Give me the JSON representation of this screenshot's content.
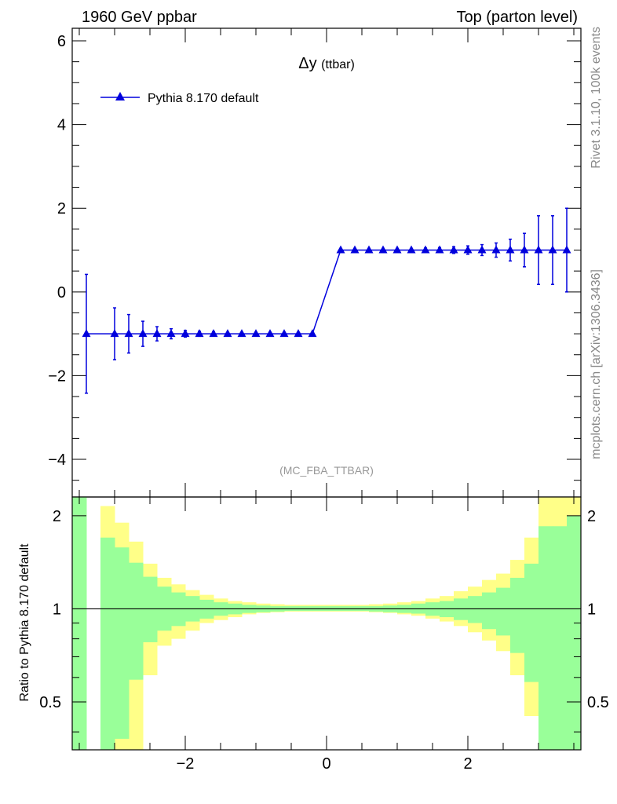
{
  "header": {
    "left": "1960 GeV ppbar",
    "right": "Top (parton level)"
  },
  "side_labels": {
    "version": "Rivet 3.1.10,  100k events",
    "source": "mcplots.cern.ch [arXiv:1306.3436]"
  },
  "chart_data": [
    {
      "type": "line",
      "title": "Δy",
      "title_sub": "(ttbar)",
      "annotation": "(MC_FBA_TTBAR)",
      "xlim": [
        -3.6,
        3.6
      ],
      "ylim": [
        -4.9,
        6.3
      ],
      "xticks": [
        -2,
        0,
        2
      ],
      "xtick_labels": [
        "−2",
        "0",
        "2"
      ],
      "yticks": [
        -4,
        -2,
        0,
        2,
        4,
        6
      ],
      "ytick_labels": [
        "−4",
        "−2",
        "0",
        "2",
        "4",
        "6"
      ],
      "legend": "top-left",
      "series": [
        {
          "name": "Pythia 8.170 default",
          "color": "#0000dd",
          "marker": "triangle",
          "x": [
            -3.4,
            -3.0,
            -2.8,
            -2.6,
            -2.4,
            -2.2,
            -2.0,
            -1.8,
            -1.6,
            -1.4,
            -1.2,
            -1.0,
            -0.8,
            -0.6,
            -0.4,
            -0.2,
            0.2,
            0.4,
            0.6,
            0.8,
            1.0,
            1.2,
            1.4,
            1.6,
            1.8,
            2.0,
            2.2,
            2.4,
            2.6,
            2.8,
            3.0,
            3.2,
            3.4
          ],
          "y": [
            -1,
            -1,
            -1,
            -1,
            -1,
            -1,
            -1,
            -1,
            -1,
            -1,
            -1,
            -1,
            -1,
            -1,
            -1,
            -1,
            1,
            1,
            1,
            1,
            1,
            1,
            1,
            1,
            1,
            1,
            1,
            1,
            1,
            1,
            1,
            1,
            1
          ],
          "yerr": [
            1.42,
            0.62,
            0.46,
            0.3,
            0.17,
            0.12,
            0.08,
            0.06,
            0.05,
            0.04,
            0.03,
            0.03,
            0.02,
            0.02,
            0.02,
            0.02,
            0.02,
            0.02,
            0.02,
            0.03,
            0.03,
            0.04,
            0.05,
            0.06,
            0.08,
            0.1,
            0.13,
            0.17,
            0.26,
            0.4,
            0.82,
            0.82,
            1.0
          ]
        }
      ]
    },
    {
      "type": "area",
      "ylabel": "Ratio to Pythia 8.170 default",
      "xlim": [
        -3.6,
        3.6
      ],
      "ylim": [
        0.35,
        2.3
      ],
      "yscale": "log",
      "yticks": [
        0.5,
        1,
        2
      ],
      "ytick_labels": [
        "0.5",
        "1",
        "2"
      ],
      "xticks": [
        -2,
        0,
        2
      ],
      "xtick_labels": [
        "−2",
        "0",
        "2"
      ],
      "reference_line": 1,
      "bin_width": 0.2,
      "bin_centers": [
        -3.5,
        -3.1,
        -2.9,
        -2.7,
        -2.5,
        -2.3,
        -2.1,
        -1.9,
        -1.7,
        -1.5,
        -1.3,
        -1.1,
        -0.9,
        -0.7,
        -0.5,
        -0.3,
        -0.1,
        0.1,
        0.3,
        0.5,
        0.7,
        0.9,
        1.1,
        1.3,
        1.5,
        1.7,
        1.9,
        2.1,
        2.3,
        2.5,
        2.7,
        2.9,
        3.1,
        3.3,
        3.5
      ],
      "band_outer_colour": "#ffff88",
      "band_inner_colour": "#99ff99",
      "band_outer_hi": [
        2.3,
        2.15,
        1.9,
        1.65,
        1.4,
        1.26,
        1.2,
        1.15,
        1.11,
        1.08,
        1.06,
        1.05,
        1.04,
        1.035,
        1.03,
        1.03,
        1.03,
        1.03,
        1.03,
        1.03,
        1.035,
        1.04,
        1.05,
        1.06,
        1.08,
        1.1,
        1.14,
        1.18,
        1.24,
        1.3,
        1.44,
        1.7,
        2.3,
        2.3,
        2.3
      ],
      "band_outer_lo": [
        0.35,
        0.35,
        0.35,
        0.35,
        0.61,
        0.76,
        0.8,
        0.85,
        0.9,
        0.92,
        0.94,
        0.96,
        0.97,
        0.975,
        0.98,
        0.98,
        0.98,
        0.98,
        0.98,
        0.98,
        0.975,
        0.97,
        0.96,
        0.95,
        0.93,
        0.91,
        0.88,
        0.84,
        0.79,
        0.73,
        0.61,
        0.45,
        0.35,
        0.35,
        0.35
      ],
      "band_inner_hi": [
        2.3,
        1.7,
        1.58,
        1.41,
        1.27,
        1.18,
        1.13,
        1.1,
        1.07,
        1.05,
        1.04,
        1.03,
        1.025,
        1.02,
        1.02,
        1.02,
        1.02,
        1.02,
        1.02,
        1.02,
        1.02,
        1.025,
        1.03,
        1.04,
        1.05,
        1.06,
        1.08,
        1.1,
        1.13,
        1.17,
        1.26,
        1.4,
        1.85,
        1.85,
        2.0
      ],
      "band_inner_lo": [
        0.35,
        0.35,
        0.38,
        0.59,
        0.78,
        0.85,
        0.88,
        0.91,
        0.93,
        0.95,
        0.96,
        0.97,
        0.975,
        0.98,
        0.985,
        0.985,
        0.985,
        0.985,
        0.985,
        0.985,
        0.98,
        0.975,
        0.97,
        0.965,
        0.95,
        0.94,
        0.92,
        0.9,
        0.86,
        0.82,
        0.72,
        0.58,
        0.35,
        0.35,
        0.35
      ]
    }
  ]
}
